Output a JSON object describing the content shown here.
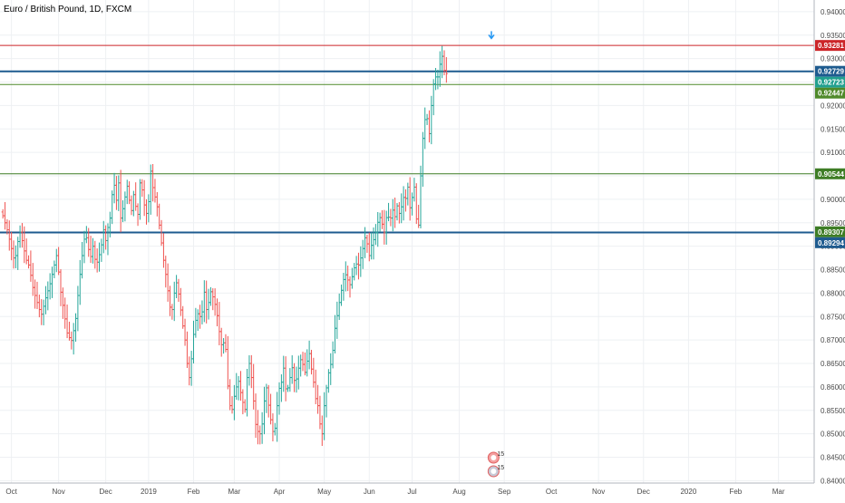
{
  "chart_data": {
    "type": "ohlc",
    "title": "Euro / British Pound, 1D, FXCM",
    "y_range": [
      0.8395,
      0.9425
    ],
    "y_ticks": [
      "0.94000",
      "0.93500",
      "0.93000",
      "0.92500",
      "0.92000",
      "0.91500",
      "0.91000",
      "0.90500",
      "0.90000",
      "0.89500",
      "0.89000",
      "0.88500",
      "0.88000",
      "0.87500",
      "0.87000",
      "0.86500",
      "0.86000",
      "0.85500",
      "0.85000",
      "0.84500",
      "0.84000"
    ],
    "x_ticks": [
      {
        "label": "Oct",
        "bar": 4
      },
      {
        "label": "Nov",
        "bar": 26
      },
      {
        "label": "Dec",
        "bar": 48
      },
      {
        "label": "2019",
        "bar": 68
      },
      {
        "label": "Feb",
        "bar": 89
      },
      {
        "label": "Mar",
        "bar": 108
      },
      {
        "label": "Apr",
        "bar": 129
      },
      {
        "label": "May",
        "bar": 150
      },
      {
        "label": "Jun",
        "bar": 171
      },
      {
        "label": "Jul",
        "bar": 191
      },
      {
        "label": "Aug",
        "bar": 213
      },
      {
        "label": "Sep",
        "bar": 234
      },
      {
        "label": "Oct",
        "bar": 256
      },
      {
        "label": "Nov",
        "bar": 278
      },
      {
        "label": "Dec",
        "bar": 299
      },
      {
        "label": "2020",
        "bar": 320
      },
      {
        "label": "Feb",
        "bar": 342
      },
      {
        "label": "Mar",
        "bar": 362
      }
    ],
    "bar_count_total": 380,
    "closes": [
      0.8965,
      0.895,
      0.8935,
      0.8915,
      0.8895,
      0.8875,
      0.888,
      0.891,
      0.893,
      0.8912,
      0.889,
      0.887,
      0.886,
      0.8838,
      0.8812,
      0.8795,
      0.878,
      0.8765,
      0.8755,
      0.8772,
      0.879,
      0.8805,
      0.882,
      0.884,
      0.886,
      0.888,
      0.8845,
      0.8802,
      0.8774,
      0.8745,
      0.8715,
      0.8705,
      0.8699,
      0.872,
      0.8746,
      0.8795,
      0.884,
      0.888,
      0.8915,
      0.8918,
      0.8893,
      0.8878,
      0.89,
      0.8872,
      0.8866,
      0.8882,
      0.8903,
      0.8935,
      0.8912,
      0.894,
      0.896,
      0.901,
      0.903,
      0.8998,
      0.9035,
      0.896,
      0.898,
      0.9005,
      0.9028,
      0.8998,
      0.8976,
      0.901,
      0.8985,
      0.8968,
      0.9035,
      0.902,
      0.8988,
      0.897,
      0.8995,
      0.906,
      0.9025,
      0.9005,
      0.8984,
      0.8945,
      0.8907,
      0.887,
      0.884,
      0.8805,
      0.877,
      0.8765,
      0.88,
      0.8822,
      0.8798,
      0.8764,
      0.873,
      0.87,
      0.865,
      0.862,
      0.866,
      0.8712,
      0.8742,
      0.8756,
      0.875,
      0.876,
      0.8802,
      0.8765,
      0.878,
      0.8803,
      0.8792,
      0.8776,
      0.8752,
      0.8718,
      0.869,
      0.8694,
      0.868,
      0.8602,
      0.856,
      0.8552,
      0.858,
      0.86,
      0.8612,
      0.8588,
      0.8567,
      0.8552,
      0.862,
      0.865,
      0.862,
      0.857,
      0.852,
      0.8505,
      0.85,
      0.8521,
      0.857,
      0.8598,
      0.8561,
      0.853,
      0.8505,
      0.8512,
      0.856,
      0.8597,
      0.861,
      0.864,
      0.8596,
      0.8598,
      0.862,
      0.8641,
      0.8614,
      0.8617,
      0.864,
      0.8658,
      0.8648,
      0.8631,
      0.8655,
      0.8671,
      0.8638,
      0.861,
      0.8575,
      0.856,
      0.8521,
      0.85,
      0.856,
      0.8598,
      0.863,
      0.8648,
      0.8678,
      0.8725,
      0.8752,
      0.878,
      0.8806,
      0.8829,
      0.8839,
      0.8828,
      0.8818,
      0.8835,
      0.8854,
      0.8862,
      0.886,
      0.8875,
      0.8895,
      0.8918,
      0.8905,
      0.888,
      0.8902,
      0.8914,
      0.8929,
      0.8951,
      0.8961,
      0.8947,
      0.8929,
      0.8961,
      0.8962,
      0.896,
      0.8977,
      0.8963,
      0.8986,
      0.897,
      0.8984,
      0.9004,
      0.9002,
      0.9026,
      0.8982,
      0.9004,
      0.9026,
      0.8958,
      0.8945,
      0.905,
      0.913,
      0.917,
      0.9172,
      0.914,
      0.92,
      0.9246,
      0.9261,
      0.9261,
      0.9288,
      0.9305,
      0.9275,
      0.9268
    ],
    "levels": [
      {
        "label": "0.93281",
        "value": 0.93281,
        "color": "#cc2529",
        "line_width": 1
      },
      {
        "label": "0.92729",
        "value": 0.92729,
        "color": "#1e5b8f",
        "line_width": 2
      },
      {
        "label": "0.92723",
        "value": 0.92723,
        "color": "#22a08f",
        "line_width": 0
      },
      {
        "label": "0.92447",
        "value": 0.92447,
        "color": "#4f8a2a",
        "line_width": 1
      },
      {
        "label": "0.90544",
        "value": 0.90544,
        "color": "#3e7d25",
        "line_width": 1
      },
      {
        "label": "0.89307",
        "value": 0.89307,
        "color": "#3e7d25",
        "line_width": 0
      },
      {
        "label": "0.89294",
        "value": 0.89294,
        "color": "#1e5b8f",
        "line_width": 2
      }
    ],
    "colors": {
      "up": "#26a69a",
      "down": "#ef5350",
      "grid": "#eef0f3",
      "axis": "#b2b5be",
      "arrow": "#2196f3"
    },
    "markers": [
      {
        "label": "15",
        "bar": 234
      },
      {
        "label": "15",
        "bar": 234
      }
    ]
  }
}
